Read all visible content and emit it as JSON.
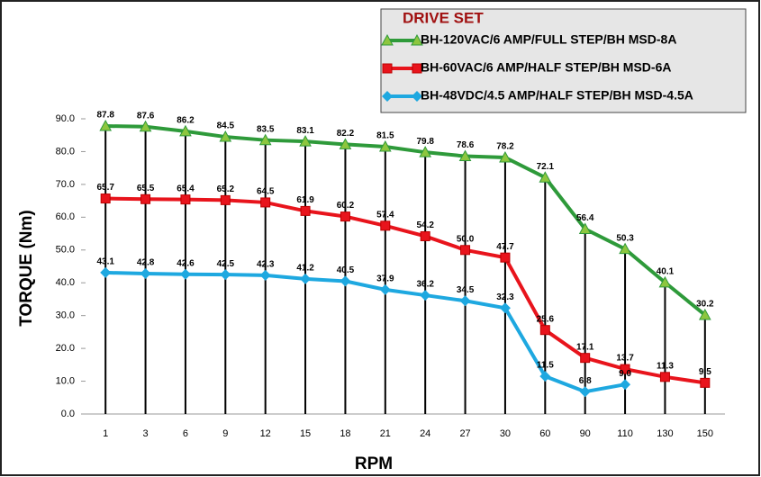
{
  "chart_data": {
    "type": "line",
    "ylabel": "TORQUE (Nm)",
    "xlabel": "RPM",
    "legend_title": "DRIVE SET",
    "categories": [
      "1",
      "3",
      "6",
      "9",
      "12",
      "15",
      "18",
      "21",
      "24",
      "27",
      "30",
      "60",
      "90",
      "110",
      "130",
      "150"
    ],
    "ylim": [
      0,
      90
    ],
    "yticks": [
      {
        "value": 0,
        "label": "0.0"
      },
      {
        "value": 10,
        "label": "10.0"
      },
      {
        "value": 20,
        "label": "20.0"
      },
      {
        "value": 30,
        "label": "30.0"
      },
      {
        "value": 40,
        "label": "40.0"
      },
      {
        "value": 50,
        "label": "50.0"
      },
      {
        "value": 60,
        "label": "60.0"
      },
      {
        "value": 70,
        "label": "70.0"
      },
      {
        "value": 80,
        "label": "80.0"
      },
      {
        "value": 90,
        "label": "90.0"
      }
    ],
    "series": [
      {
        "name": "BH-120VAC/6 AMP/FULL STEP/BH MSD-8A",
        "color": "#2e9a3a",
        "marker": "triangle",
        "values": [
          87.8,
          87.6,
          86.2,
          84.5,
          83.5,
          83.1,
          82.2,
          81.5,
          79.8,
          78.6,
          78.2,
          72.1,
          56.4,
          50.3,
          40.1,
          30.2
        ],
        "value_labels": [
          "87.8",
          "87.6",
          "86.2",
          "84.5",
          "83.5",
          "83.1",
          "82.2",
          "81.5",
          "79.8",
          "78.6",
          "78.2",
          "72.1",
          "56.4",
          "50.3",
          "40.1",
          "30.2"
        ]
      },
      {
        "name": "BH-60VAC/6 AMP/HALF STEP/BH MSD-6A",
        "color": "#e8141c",
        "marker": "square",
        "values": [
          65.7,
          65.5,
          65.4,
          65.2,
          64.5,
          61.9,
          60.2,
          57.4,
          54.2,
          50.0,
          47.7,
          25.6,
          17.1,
          13.7,
          11.3,
          9.5
        ],
        "value_labels": [
          "65.7",
          "65.5",
          "65.4",
          "65.2",
          "64.5",
          "61.9",
          "60.2",
          "57.4",
          "54.2",
          "50.0",
          "47.7",
          "25.6",
          "17.1",
          "13.7",
          "11.3",
          "9.5"
        ]
      },
      {
        "name": "BH-48VDC/4.5 AMP/HALF STEP/BH MSD-4.5A",
        "color": "#1ea8e0",
        "marker": "diamond",
        "values": [
          43.1,
          42.8,
          42.6,
          42.5,
          42.3,
          41.2,
          40.5,
          37.9,
          36.2,
          34.5,
          32.3,
          11.5,
          6.8,
          9.0,
          null,
          null
        ],
        "value_labels": [
          "43.1",
          "42.8",
          "42.6",
          "42.5",
          "42.3",
          "41.2",
          "40.5",
          "37.9",
          "36.2",
          "34.5",
          "32.3",
          "11.5",
          "6.8",
          "9.0",
          null,
          null
        ]
      }
    ]
  }
}
